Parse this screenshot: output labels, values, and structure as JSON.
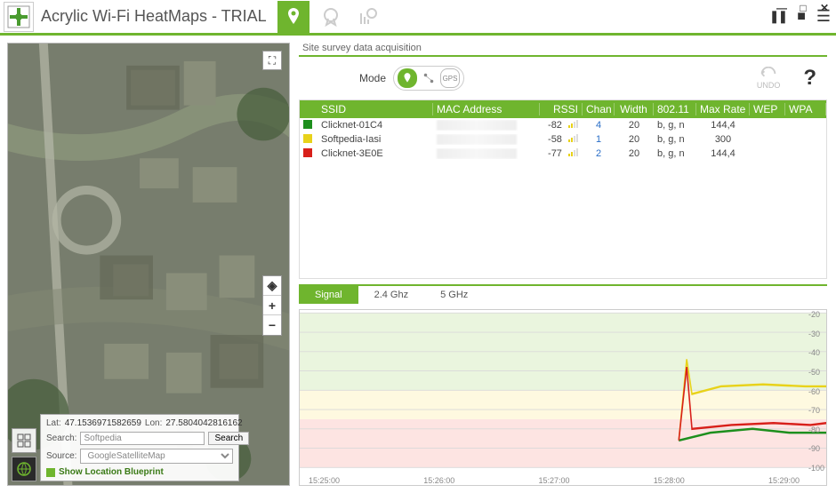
{
  "app": {
    "title": "Acrylic Wi-Fi HeatMaps - TRIAL",
    "accent_color": "#6fb52e"
  },
  "titlebar_icons": {
    "pause": "❚❚",
    "stop": "■",
    "menu": "☰"
  },
  "window_controls": {
    "min": "—",
    "max": "□",
    "close": "✕"
  },
  "map": {
    "lat_label": "Lat:",
    "lat_value": "47.1536971582659",
    "lon_label": "Lon:",
    "lon_value": "27.5804042816162",
    "search_label": "Search:",
    "search_value": "Softpedia",
    "search_button": "Search",
    "source_label": "Source:",
    "source_value": "GoogleSatelliteMap",
    "blueprint_label": "Show Location Blueprint",
    "zoom": {
      "compass": "◈",
      "plus": "+",
      "minus": "−"
    },
    "fullscreen": "⛶"
  },
  "survey": {
    "panel_title": "Site survey data acquisition",
    "mode_label": "Mode",
    "undo_label": "UNDO",
    "help": "?",
    "columns": [
      "SSID",
      "MAC Address",
      "RSSI",
      "Chan",
      "Width",
      "802.11",
      "Max Rate",
      "WEP",
      "WPA"
    ],
    "rows": [
      {
        "color": "#1d8f1d",
        "ssid": "Clicknet-01C4",
        "rssi": "-82",
        "chan": "4",
        "width": "20",
        "proto": "b, g, n",
        "rate": "144,4"
      },
      {
        "color": "#e8d21a",
        "ssid": "Softpedia-Iasi",
        "rssi": "-58",
        "chan": "1",
        "width": "20",
        "proto": "b, g, n",
        "rate": "300"
      },
      {
        "color": "#d8201a",
        "ssid": "Clicknet-3E0E",
        "rssi": "-77",
        "chan": "2",
        "width": "20",
        "proto": "b, g, n",
        "rate": "144,4"
      }
    ]
  },
  "chart": {
    "tabs": [
      "Signal",
      "2.4 Ghz",
      "5 GHz"
    ],
    "active_tab": 0,
    "y_ticks": [
      "-20",
      "-30",
      "-40",
      "-50",
      "-60",
      "-70",
      "-80",
      "-90",
      "-100"
    ],
    "x_ticks": [
      "15:25:00",
      "15:26:00",
      "15:27:00",
      "15:28:00",
      "15:29:00"
    ],
    "bands": [
      {
        "from": -20,
        "to": -60,
        "color": "#eaf5de"
      },
      {
        "from": -60,
        "to": -75,
        "color": "#fef9e0"
      },
      {
        "from": -75,
        "to": -100,
        "color": "#fde4e2"
      }
    ],
    "gridline_color": "#d9d9d9",
    "series": [
      {
        "color": "#e8d21a",
        "points": [
          [
            0.72,
            -86
          ],
          [
            0.735,
            -44
          ],
          [
            0.745,
            -62
          ],
          [
            0.8,
            -58
          ],
          [
            0.88,
            -57
          ],
          [
            0.96,
            -58
          ],
          [
            1.0,
            -58
          ]
        ]
      },
      {
        "color": "#1d8f1d",
        "points": [
          [
            0.72,
            -86
          ],
          [
            0.78,
            -82
          ],
          [
            0.86,
            -80
          ],
          [
            0.93,
            -82
          ],
          [
            1.0,
            -82
          ]
        ]
      },
      {
        "color": "#d8201a",
        "points": [
          [
            0.72,
            -86
          ],
          [
            0.735,
            -48
          ],
          [
            0.745,
            -80
          ],
          [
            0.82,
            -78
          ],
          [
            0.9,
            -77
          ],
          [
            0.97,
            -78
          ],
          [
            1.0,
            -77
          ]
        ]
      }
    ]
  }
}
